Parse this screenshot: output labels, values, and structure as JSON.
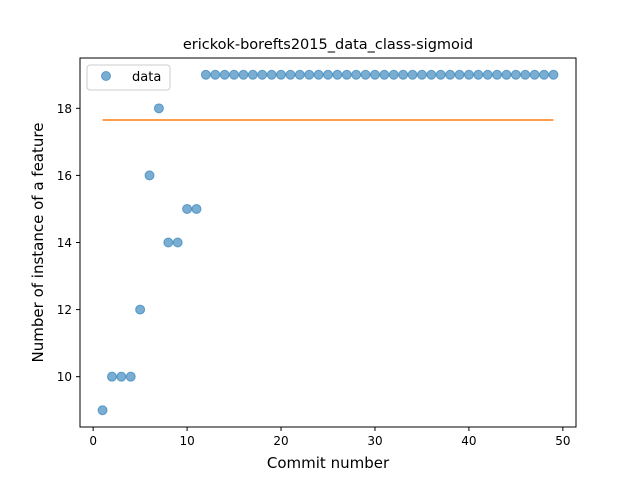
{
  "chart_data": {
    "type": "scatter",
    "title": "erickok-borefts2015_data_class-sigmoid",
    "xlabel": "Commit number",
    "ylabel": "Number of instance of a feature",
    "xlim": [
      -1.4,
      51.4
    ],
    "ylim": [
      8.5,
      19.5
    ],
    "xticks": [
      0,
      10,
      20,
      30,
      40,
      50
    ],
    "yticks": [
      10,
      12,
      14,
      16,
      18
    ],
    "grid": false,
    "legend": {
      "location": "upper left",
      "entries": [
        "data"
      ]
    },
    "series": [
      {
        "name": "data",
        "kind": "scatter",
        "color": "#1f77b4",
        "alpha": 0.6,
        "x": [
          1,
          2,
          3,
          4,
          5,
          6,
          7,
          8,
          9,
          10,
          11,
          12,
          13,
          14,
          15,
          16,
          17,
          18,
          19,
          20,
          21,
          22,
          23,
          24,
          25,
          26,
          27,
          28,
          29,
          30,
          31,
          32,
          33,
          34,
          35,
          36,
          37,
          38,
          39,
          40,
          41,
          42,
          43,
          44,
          45,
          46,
          47,
          48,
          49
        ],
        "y": [
          9,
          10,
          10,
          10,
          12,
          16,
          18,
          14,
          14,
          15,
          15,
          19,
          19,
          19,
          19,
          19,
          19,
          19,
          19,
          19,
          19,
          19,
          19,
          19,
          19,
          19,
          19,
          19,
          19,
          19,
          19,
          19,
          19,
          19,
          19,
          19,
          19,
          19,
          19,
          19,
          19,
          19,
          19,
          19,
          19,
          19,
          19,
          19,
          19
        ]
      },
      {
        "kind": "line",
        "color": "#ff7f0e",
        "x": [
          1,
          49
        ],
        "y": [
          17.65,
          17.65
        ]
      }
    ]
  }
}
